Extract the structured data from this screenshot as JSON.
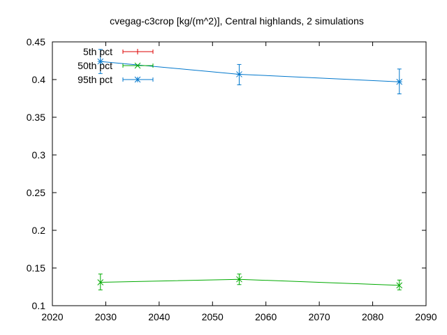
{
  "chart_data": {
    "type": "line",
    "title": "cvegag-c3crop [kg/(m^2)], Central highlands, 2 simulations",
    "xlabel": "",
    "ylabel": "",
    "xlim": [
      2020,
      2090
    ],
    "ylim": [
      0.1,
      0.45
    ],
    "x_ticks": [
      "2020",
      "2030",
      "2040",
      "2050",
      "2060",
      "2070",
      "2080",
      "2090"
    ],
    "y_ticks": [
      "0.1",
      "0.15",
      "0.2",
      "0.25",
      "0.3",
      "0.35",
      "0.4",
      "0.45"
    ],
    "grid": false,
    "legend_position": "top-left",
    "series": [
      {
        "name": "5th pct",
        "color": "#dd0000",
        "marker": "plus",
        "x": [],
        "y": [],
        "err_low": [],
        "err_high": []
      },
      {
        "name": "50th pct",
        "color": "#00aa00",
        "marker": "cross",
        "x": [
          2029,
          2055,
          2085
        ],
        "y": [
          0.131,
          0.135,
          0.127
        ],
        "err_low": [
          0.121,
          0.128,
          0.121
        ],
        "err_high": [
          0.142,
          0.142,
          0.134
        ]
      },
      {
        "name": "95th pct",
        "color": "#0077cc",
        "marker": "star",
        "x": [
          2029,
          2055,
          2085
        ],
        "y": [
          0.424,
          0.407,
          0.397
        ],
        "err_low": [
          0.408,
          0.393,
          0.381
        ],
        "err_high": [
          0.44,
          0.42,
          0.414
        ]
      }
    ]
  }
}
